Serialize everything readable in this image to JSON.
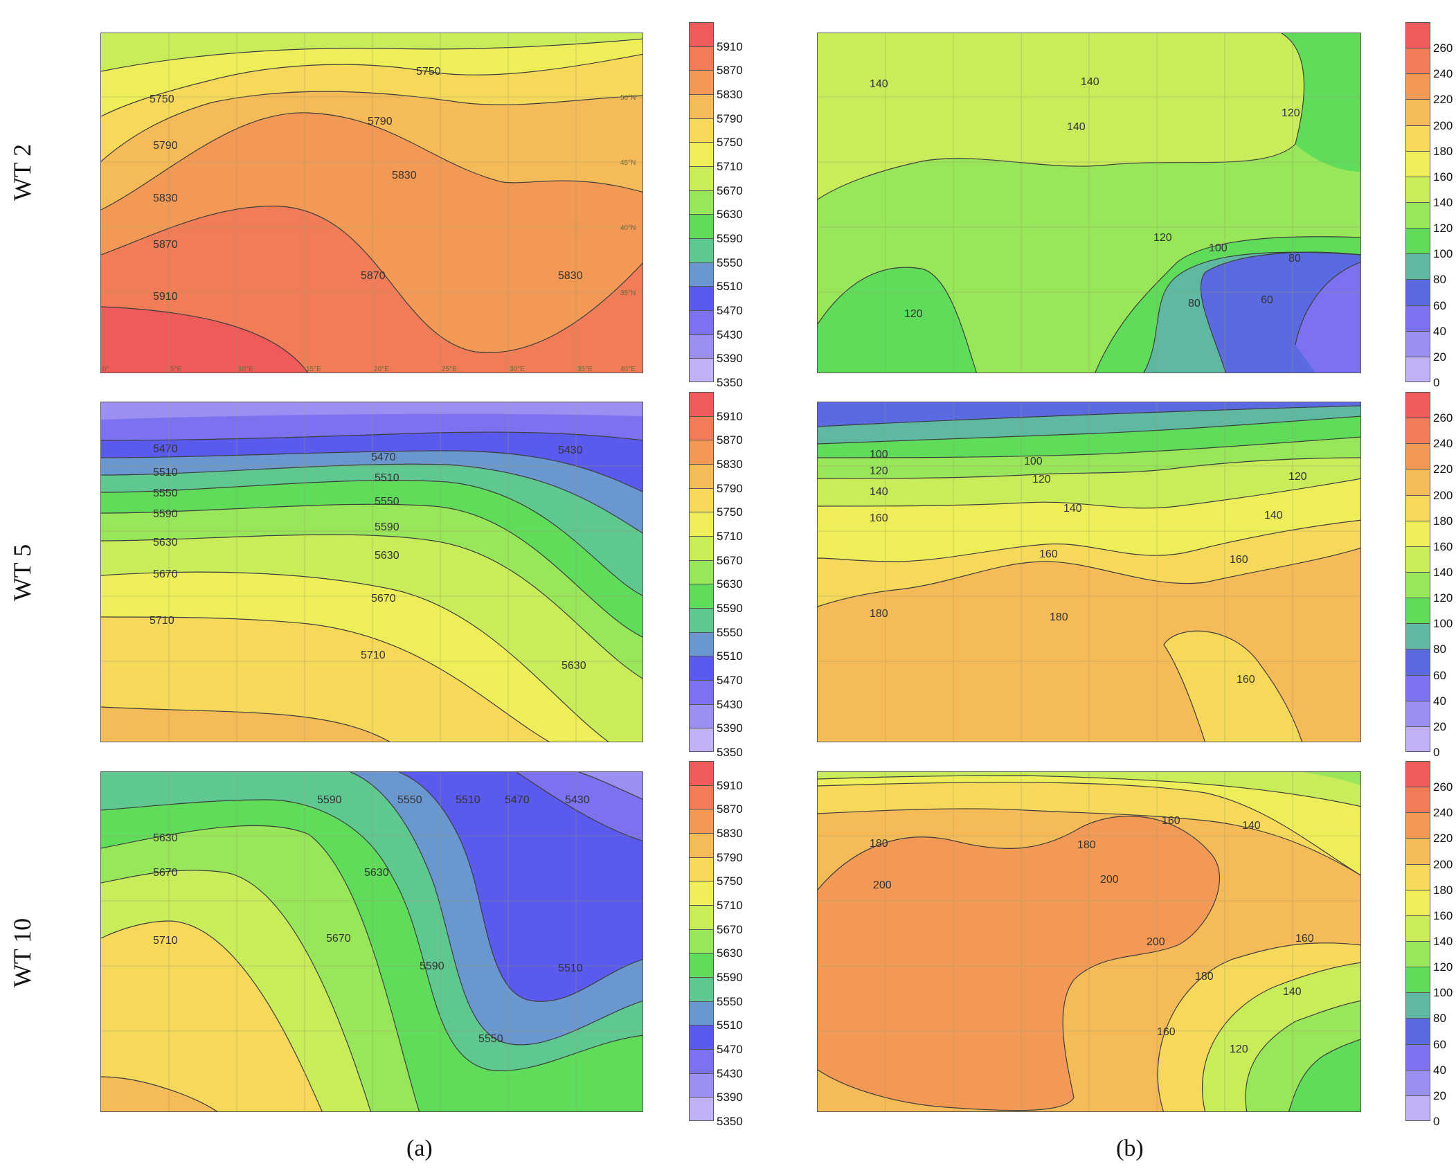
{
  "row_labels": [
    "WT 2",
    "WT 5",
    "WT 10"
  ],
  "column_labels": [
    "(a)",
    "(b)"
  ],
  "colorbar_a": {
    "ticks": [
      "5910",
      "5870",
      "5830",
      "5790",
      "5750",
      "5710",
      "5670",
      "5630",
      "5590",
      "5550",
      "5510",
      "5470",
      "5430",
      "5390",
      "5350"
    ],
    "colors": [
      "#ef5a5a",
      "#f07c58",
      "#f29a55",
      "#f5bb58",
      "#f6d85a",
      "#eeee5a",
      "#c9ec5a",
      "#98e65a",
      "#5fdc5a",
      "#5fc890",
      "#6a97cf",
      "#5a5aef",
      "#7c72f0",
      "#9c8ff2",
      "#c3b1f5"
    ]
  },
  "colorbar_b": {
    "ticks": [
      "260",
      "240",
      "220",
      "200",
      "180",
      "160",
      "140",
      "120",
      "100",
      "80",
      "60",
      "40",
      "20",
      "0"
    ],
    "colors": [
      "#ef5a5a",
      "#f07c58",
      "#f29a55",
      "#f5bb58",
      "#f6d85a",
      "#eeee5a",
      "#c9ec5a",
      "#98e65a",
      "#5fdc5a",
      "#5fb8a2",
      "#5a6ae0",
      "#7c72f0",
      "#9c8ff2",
      "#c3b1f5"
    ]
  },
  "longitude_labels": [
    "0°",
    "5°E",
    "10°E",
    "15°E",
    "20°E",
    "25°E",
    "30°E",
    "35°E",
    "40°E"
  ],
  "latitude_labels": [
    "50°N",
    "45°N",
    "40°N",
    "35°N"
  ],
  "panels": {
    "wt2a": {
      "contour_labels": [
        "5750",
        "5750",
        "5790",
        "5790",
        "5830",
        "5830",
        "5870",
        "5870",
        "5830",
        "5910"
      ]
    },
    "wt2b": {
      "contour_labels": [
        "140",
        "140",
        "140",
        "120",
        "120",
        "100",
        "80",
        "80",
        "60",
        "120"
      ]
    },
    "wt5a": {
      "contour_labels": [
        "5470",
        "5470",
        "5430",
        "5510",
        "5510",
        "5550",
        "5550",
        "5590",
        "5590",
        "5630",
        "5630",
        "5670",
        "5670",
        "5710",
        "5710",
        "5630"
      ]
    },
    "wt5b": {
      "contour_labels": [
        "100",
        "100",
        "120",
        "120",
        "120",
        "140",
        "140",
        "140",
        "160",
        "160",
        "160",
        "180",
        "180",
        "160"
      ]
    },
    "wt10a": {
      "contour_labels": [
        "5630",
        "5590",
        "5550",
        "5510",
        "5470",
        "5430",
        "5670",
        "5630",
        "5710",
        "5670",
        "5590",
        "5510",
        "5550"
      ]
    },
    "wt10b": {
      "contour_labels": [
        "160",
        "140",
        "180",
        "180",
        "200",
        "200",
        "200",
        "160",
        "180",
        "160",
        "140",
        "120"
      ]
    }
  }
}
